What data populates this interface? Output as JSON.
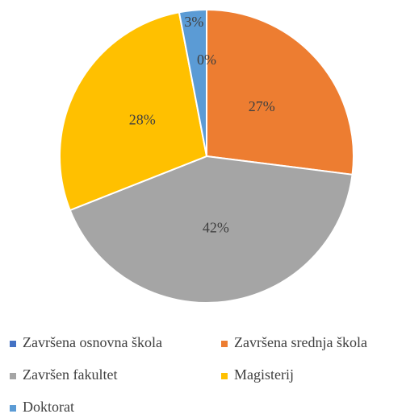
{
  "chart_data": {
    "type": "pie",
    "categories": [
      "Završena osnovna škola",
      "Završena srednja škola",
      "Završen fakultet",
      "Magisterij",
      "Doktorat"
    ],
    "values": [
      0,
      27,
      42,
      28,
      3
    ],
    "value_labels": [
      "0%",
      "27%",
      "42%",
      "28%",
      "3%"
    ],
    "colors": [
      "#4472c4",
      "#ed7d31",
      "#a5a5a5",
      "#ffc000",
      "#5b9bd5"
    ],
    "legend": "bottom"
  }
}
